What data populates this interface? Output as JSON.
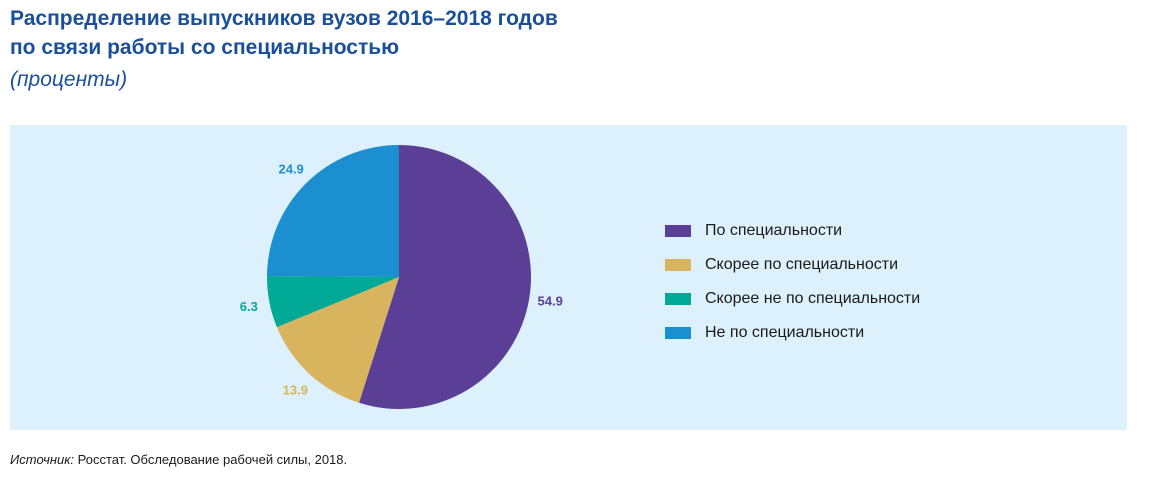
{
  "header": {
    "title_line1": "Распределение выпускников вузов 2016–2018 годов",
    "title_line2": "по связи работы со специальностью",
    "subtitle": "(проценты)"
  },
  "chart_data": {
    "type": "pie",
    "title": "Распределение выпускников вузов 2016–2018 годов по связи работы со специальностью",
    "subtitle": "(проценты)",
    "start_angle_deg": 0,
    "direction": "clockwise",
    "legend_position": "right",
    "slices": [
      {
        "label": "По специальности",
        "value": 54.9,
        "value_label": "54.9",
        "color": "#5b3f97"
      },
      {
        "label": "Скорее по специальности",
        "value": 13.9,
        "value_label": "13.9",
        "color": "#d8b45e"
      },
      {
        "label": "Скорее не по специальности",
        "value": 6.3,
        "value_label": "6.3",
        "color": "#00a896"
      },
      {
        "label": "Не по специальности",
        "value": 24.9,
        "value_label": "24.9",
        "color": "#1b8fd0"
      }
    ]
  },
  "source": {
    "prefix": "Источник:",
    "text": " Росстат. Обследование рабочей силы, 2018."
  }
}
